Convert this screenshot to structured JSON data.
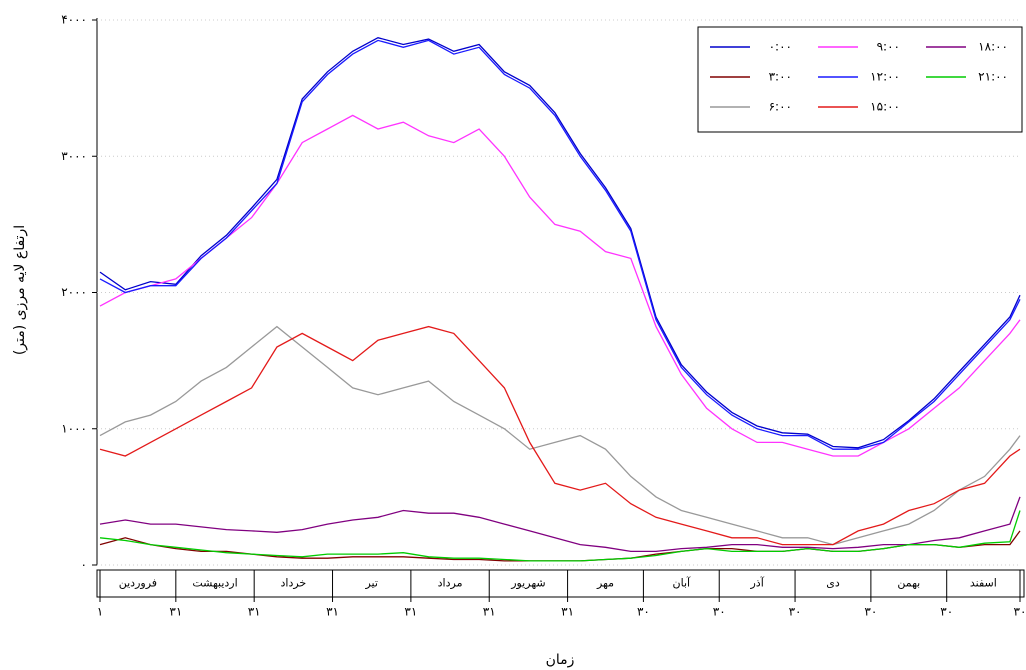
{
  "chart_data": {
    "type": "line",
    "y_label": "ارتفاع لایه مرزی (متر)",
    "x_label": "زمان",
    "x": [
      1,
      11,
      21,
      31,
      41,
      51,
      61,
      71,
      81,
      91,
      101,
      111,
      121,
      131,
      141,
      151,
      161,
      171,
      181,
      191,
      201,
      211,
      221,
      231,
      241,
      251,
      261,
      271,
      281,
      291,
      301,
      311,
      321,
      331,
      341,
      351,
      361,
      365
    ],
    "xlim": [
      1,
      365
    ],
    "xticks": [
      {
        "value": 1,
        "label": "۱"
      },
      {
        "value": 31,
        "label": "۳۱"
      },
      {
        "value": 62,
        "label": "۳۱"
      },
      {
        "value": 93,
        "label": "۳۱"
      },
      {
        "value": 124,
        "label": "۳۱"
      },
      {
        "value": 155,
        "label": "۳۱"
      },
      {
        "value": 186,
        "label": "۳۱"
      },
      {
        "value": 216,
        "label": "۳۰"
      },
      {
        "value": 246,
        "label": "۳۰"
      },
      {
        "value": 276,
        "label": "۳۰"
      },
      {
        "value": 306,
        "label": "۳۰"
      },
      {
        "value": 336,
        "label": "۳۰"
      },
      {
        "value": 365,
        "label": "۳۰"
      }
    ],
    "months": [
      "فروردین",
      "اردیبهشت",
      "خرداد",
      "تیر",
      "مرداد",
      "شهریور",
      "مهر",
      "آبان",
      "آذر",
      "دی",
      "بهمن",
      "اسفند"
    ],
    "ylim": [
      0,
      4000
    ],
    "yticks": [
      {
        "value": 0,
        "label": "۰"
      },
      {
        "value": 1000,
        "label": "۱۰۰۰"
      },
      {
        "value": 2000,
        "label": "۲۰۰۰"
      },
      {
        "value": 3000,
        "label": "۳۰۰۰"
      },
      {
        "value": 4000,
        "label": "۴۰۰۰"
      }
    ],
    "grid": true,
    "legend": "upper right",
    "series": [
      {
        "name": "۰:۰۰",
        "color": "#0000cc",
        "values": [
          2150,
          2020,
          2080,
          2060,
          2270,
          2420,
          2620,
          2830,
          3420,
          3620,
          3770,
          3870,
          3820,
          3860,
          3770,
          3820,
          3620,
          3520,
          3320,
          3020,
          2770,
          2470,
          1820,
          1470,
          1270,
          1120,
          1020,
          970,
          960,
          870,
          860,
          920,
          1060,
          1220,
          1420,
          1620,
          1820,
          1980
        ]
      },
      {
        "name": "۳:۰۰",
        "color": "#800000",
        "values": [
          150,
          200,
          150,
          120,
          100,
          100,
          80,
          60,
          50,
          50,
          60,
          60,
          60,
          50,
          40,
          40,
          30,
          30,
          30,
          30,
          40,
          50,
          80,
          100,
          120,
          120,
          100,
          100,
          120,
          100,
          100,
          120,
          150,
          150,
          130,
          150,
          150,
          250
        ]
      },
      {
        "name": "۶:۰۰",
        "color": "#999999",
        "values": [
          950,
          1050,
          1100,
          1200,
          1350,
          1450,
          1600,
          1750,
          1600,
          1450,
          1300,
          1250,
          1300,
          1350,
          1200,
          1100,
          1000,
          850,
          900,
          950,
          850,
          650,
          500,
          400,
          350,
          300,
          250,
          200,
          200,
          150,
          200,
          250,
          300,
          400,
          550,
          650,
          850,
          950
        ]
      },
      {
        "name": "۹:۰۰",
        "color": "#ff33ff",
        "values": [
          1900,
          2000,
          2050,
          2100,
          2250,
          2400,
          2550,
          2800,
          3100,
          3200,
          3300,
          3200,
          3250,
          3150,
          3100,
          3200,
          3000,
          2700,
          2500,
          2450,
          2300,
          2250,
          1750,
          1400,
          1150,
          1000,
          900,
          900,
          850,
          800,
          800,
          900,
          1000,
          1150,
          1300,
          1500,
          1700,
          1800
        ]
      },
      {
        "name": "۱۲:۰۰",
        "color": "#1a1aff",
        "values": [
          2100,
          2000,
          2050,
          2050,
          2250,
          2400,
          2600,
          2800,
          3400,
          3600,
          3750,
          3850,
          3800,
          3850,
          3750,
          3800,
          3600,
          3500,
          3300,
          3000,
          2750,
          2450,
          1800,
          1450,
          1250,
          1100,
          1000,
          950,
          950,
          850,
          850,
          900,
          1050,
          1200,
          1400,
          1600,
          1800,
          1950
        ]
      },
      {
        "name": "۱۵:۰۰",
        "color": "#e31a1a",
        "values": [
          850,
          800,
          900,
          1000,
          1100,
          1200,
          1300,
          1600,
          1700,
          1600,
          1500,
          1650,
          1700,
          1750,
          1700,
          1500,
          1300,
          900,
          600,
          550,
          600,
          450,
          350,
          300,
          250,
          200,
          200,
          150,
          150,
          150,
          250,
          300,
          400,
          450,
          550,
          600,
          800,
          850
        ]
      },
      {
        "name": "۱۸:۰۰",
        "color": "#800080",
        "values": [
          300,
          330,
          300,
          300,
          280,
          260,
          250,
          240,
          260,
          300,
          330,
          350,
          400,
          380,
          380,
          350,
          300,
          250,
          200,
          150,
          130,
          100,
          100,
          120,
          130,
          150,
          150,
          130,
          130,
          120,
          130,
          150,
          150,
          180,
          200,
          250,
          300,
          500
        ]
      },
      {
        "name": "۲۱:۰۰",
        "color": "#00cc00",
        "values": [
          200,
          180,
          150,
          130,
          110,
          90,
          80,
          70,
          60,
          80,
          80,
          80,
          90,
          60,
          50,
          50,
          40,
          30,
          30,
          30,
          40,
          50,
          70,
          100,
          120,
          100,
          100,
          100,
          120,
          100,
          100,
          120,
          150,
          150,
          130,
          160,
          170,
          400
        ]
      }
    ]
  }
}
